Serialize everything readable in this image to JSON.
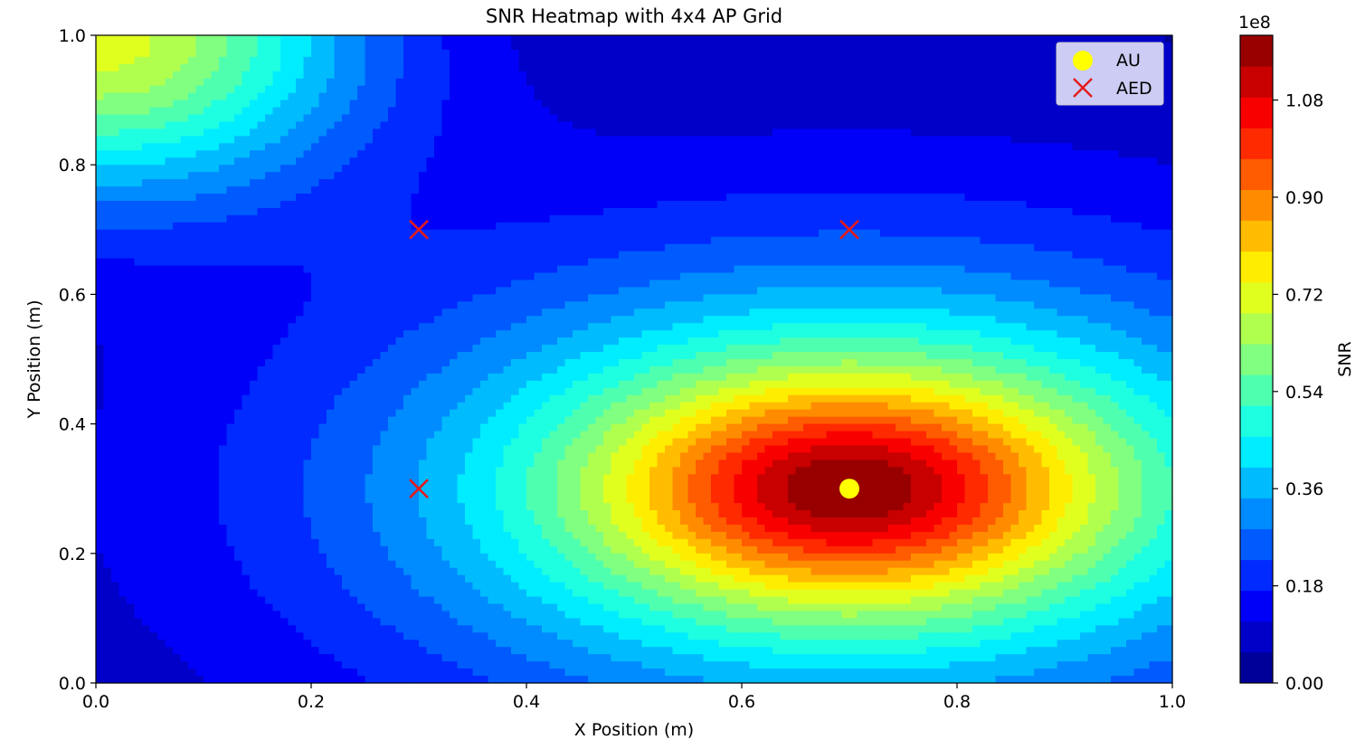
{
  "chart_data": {
    "type": "heatmap",
    "title": "SNR Heatmap with 4x4 AP Grid",
    "xlabel": "X Position (m)",
    "ylabel": "Y Position (m)",
    "xlim": [
      0.0,
      1.0
    ],
    "ylim": [
      0.0,
      1.0
    ],
    "x_ticks": [
      "0.0",
      "0.2",
      "0.4",
      "0.6",
      "0.8",
      "1.0"
    ],
    "y_ticks": [
      "0.0",
      "0.2",
      "0.4",
      "0.6",
      "0.8",
      "1.0"
    ],
    "grid": false,
    "colorbar": {
      "label": "SNR",
      "offset_text": "1e8",
      "range": [
        0.0,
        1.2
      ],
      "ticks": [
        "0.00",
        "0.18",
        "0.36",
        "0.54",
        "0.72",
        "0.90",
        "1.08"
      ],
      "levels": 21,
      "colormap": "jet"
    },
    "field": {
      "peak_value": 1.2,
      "peak_at": [
        0.7,
        0.3
      ]
    },
    "legend": {
      "placement": "top-right",
      "entries": [
        {
          "label": "AU",
          "marker": "circle",
          "color": "#ffff00"
        },
        {
          "label": "AED",
          "marker": "x",
          "color": "#e41a1c"
        }
      ]
    },
    "points": {
      "AU": [
        {
          "x": 0.7,
          "y": 0.3
        }
      ],
      "AED": [
        {
          "x": 0.3,
          "y": 0.7
        },
        {
          "x": 0.7,
          "y": 0.7
        },
        {
          "x": 0.3,
          "y": 0.3
        }
      ]
    }
  }
}
